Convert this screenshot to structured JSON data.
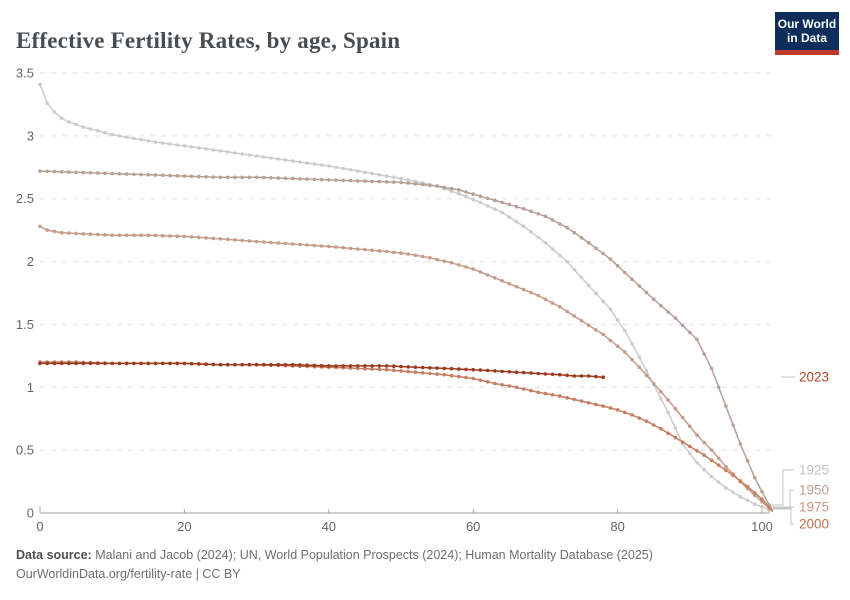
{
  "header": {
    "title": "Effective Fertility Rates, by age, Spain"
  },
  "logo": {
    "line1": "Our World",
    "line2": "in Data",
    "bg_color": "#0d2e5a",
    "bar_color": "#c0372c"
  },
  "footer": {
    "line1_label": "Data source:",
    "line1_text": " Malani and Jacob (2024); UN, World Population Prospects (2024); Human Mortality Database (2025)",
    "line2": "OurWorldinData.org/fertility-rate | CC BY"
  },
  "chart_data": {
    "type": "line",
    "title": "Effective Fertility Rates, by age, Spain",
    "xlabel": "",
    "ylabel": "",
    "xlim": [
      0,
      102
    ],
    "ylim": [
      0,
      3.5
    ],
    "x_ticks": [
      0,
      20,
      40,
      60,
      80,
      100
    ],
    "y_ticks": [
      0,
      0.5,
      1,
      1.5,
      2,
      2.5,
      3,
      3.5
    ],
    "grid": "dashed-horizontal",
    "legend_position": "right-end-labels",
    "marker_every_years": 1,
    "series": [
      {
        "name": "1925",
        "color": "#cccccc",
        "label_color": "#c2c2c2",
        "points": [
          [
            0,
            3.41
          ],
          [
            1,
            3.26
          ],
          [
            2,
            3.19
          ],
          [
            3,
            3.14
          ],
          [
            4,
            3.11
          ],
          [
            6,
            3.07
          ],
          [
            8,
            3.04
          ],
          [
            10,
            3.01
          ],
          [
            13,
            2.98
          ],
          [
            16,
            2.95
          ],
          [
            20,
            2.92
          ],
          [
            25,
            2.88
          ],
          [
            30,
            2.84
          ],
          [
            35,
            2.8
          ],
          [
            40,
            2.76
          ],
          [
            45,
            2.71
          ],
          [
            50,
            2.66
          ],
          [
            55,
            2.6
          ],
          [
            58,
            2.54
          ],
          [
            61,
            2.47
          ],
          [
            64,
            2.39
          ],
          [
            67,
            2.28
          ],
          [
            70,
            2.15
          ],
          [
            73,
            2.0
          ],
          [
            76,
            1.81
          ],
          [
            79,
            1.62
          ],
          [
            81,
            1.45
          ],
          [
            83,
            1.24
          ],
          [
            85,
            1.02
          ],
          [
            87,
            0.8
          ],
          [
            89,
            0.55
          ],
          [
            91,
            0.4
          ],
          [
            93,
            0.29
          ],
          [
            95,
            0.2
          ],
          [
            97,
            0.13
          ],
          [
            99,
            0.07
          ],
          [
            100,
            0.05
          ],
          [
            101.5,
            0.01
          ]
        ]
      },
      {
        "name": "1950",
        "color": "#b7a096",
        "label_color": "#b4a29a",
        "points": [
          [
            0,
            2.72
          ],
          [
            5,
            2.71
          ],
          [
            10,
            2.7
          ],
          [
            15,
            2.69
          ],
          [
            20,
            2.68
          ],
          [
            25,
            2.67
          ],
          [
            30,
            2.67
          ],
          [
            35,
            2.66
          ],
          [
            40,
            2.65
          ],
          [
            45,
            2.64
          ],
          [
            50,
            2.63
          ],
          [
            55,
            2.6
          ],
          [
            58,
            2.57
          ],
          [
            61,
            2.52
          ],
          [
            64,
            2.47
          ],
          [
            67,
            2.42
          ],
          [
            70,
            2.36
          ],
          [
            73,
            2.27
          ],
          [
            76,
            2.15
          ],
          [
            79,
            2.02
          ],
          [
            82,
            1.86
          ],
          [
            85,
            1.7
          ],
          [
            88,
            1.55
          ],
          [
            91,
            1.38
          ],
          [
            93,
            1.15
          ],
          [
            95,
            0.85
          ],
          [
            97,
            0.55
          ],
          [
            99,
            0.28
          ],
          [
            100,
            0.17
          ],
          [
            101.5,
            0.01
          ]
        ]
      },
      {
        "name": "1975",
        "color": "#c59b8b",
        "label_color": "#cc9382",
        "points": [
          [
            0,
            2.28
          ],
          [
            1,
            2.25
          ],
          [
            3,
            2.23
          ],
          [
            6,
            2.22
          ],
          [
            10,
            2.21
          ],
          [
            15,
            2.21
          ],
          [
            20,
            2.2
          ],
          [
            25,
            2.18
          ],
          [
            30,
            2.16
          ],
          [
            35,
            2.14
          ],
          [
            40,
            2.12
          ],
          [
            44,
            2.1
          ],
          [
            48,
            2.08
          ],
          [
            51,
            2.06
          ],
          [
            54,
            2.03
          ],
          [
            57,
            1.99
          ],
          [
            60,
            1.94
          ],
          [
            63,
            1.87
          ],
          [
            66,
            1.8
          ],
          [
            69,
            1.73
          ],
          [
            72,
            1.64
          ],
          [
            75,
            1.53
          ],
          [
            78,
            1.42
          ],
          [
            81,
            1.28
          ],
          [
            83,
            1.16
          ],
          [
            85,
            1.03
          ],
          [
            87,
            0.9
          ],
          [
            89,
            0.76
          ],
          [
            91,
            0.62
          ],
          [
            93,
            0.5
          ],
          [
            95,
            0.37
          ],
          [
            97,
            0.25
          ],
          [
            99,
            0.14
          ],
          [
            100,
            0.09
          ],
          [
            101.5,
            0.01
          ]
        ]
      },
      {
        "name": "2000",
        "color": "#c77d61",
        "label_color": "#c3714e",
        "points": [
          [
            0,
            1.2
          ],
          [
            5,
            1.2
          ],
          [
            10,
            1.19
          ],
          [
            15,
            1.19
          ],
          [
            20,
            1.19
          ],
          [
            25,
            1.18
          ],
          [
            30,
            1.18
          ],
          [
            35,
            1.17
          ],
          [
            40,
            1.16
          ],
          [
            44,
            1.15
          ],
          [
            48,
            1.14
          ],
          [
            52,
            1.12
          ],
          [
            56,
            1.1
          ],
          [
            60,
            1.07
          ],
          [
            63,
            1.03
          ],
          [
            66,
            1.0
          ],
          [
            69,
            0.96
          ],
          [
            72,
            0.93
          ],
          [
            75,
            0.89
          ],
          [
            78,
            0.85
          ],
          [
            80,
            0.82
          ],
          [
            82,
            0.78
          ],
          [
            84,
            0.73
          ],
          [
            86,
            0.67
          ],
          [
            88,
            0.6
          ],
          [
            90,
            0.53
          ],
          [
            92,
            0.46
          ],
          [
            94,
            0.38
          ],
          [
            96,
            0.3
          ],
          [
            98,
            0.21
          ],
          [
            100,
            0.11
          ],
          [
            101.5,
            0.02
          ]
        ]
      },
      {
        "name": "2023",
        "color": "#9d3a1e",
        "label_color": "#ad4527",
        "points": [
          [
            0,
            1.19
          ],
          [
            5,
            1.19
          ],
          [
            10,
            1.19
          ],
          [
            15,
            1.19
          ],
          [
            20,
            1.19
          ],
          [
            25,
            1.18
          ],
          [
            30,
            1.18
          ],
          [
            35,
            1.18
          ],
          [
            40,
            1.17
          ],
          [
            44,
            1.17
          ],
          [
            48,
            1.17
          ],
          [
            52,
            1.16
          ],
          [
            56,
            1.15
          ],
          [
            60,
            1.14
          ],
          [
            63,
            1.13
          ],
          [
            66,
            1.12
          ],
          [
            69,
            1.11
          ],
          [
            72,
            1.1
          ],
          [
            74,
            1.09
          ],
          [
            76,
            1.09
          ],
          [
            78,
            1.08
          ]
        ]
      }
    ],
    "colors": {
      "grid": "#e2e2e2",
      "axis": "#9c9c9c",
      "tick_text": "#666666"
    }
  }
}
